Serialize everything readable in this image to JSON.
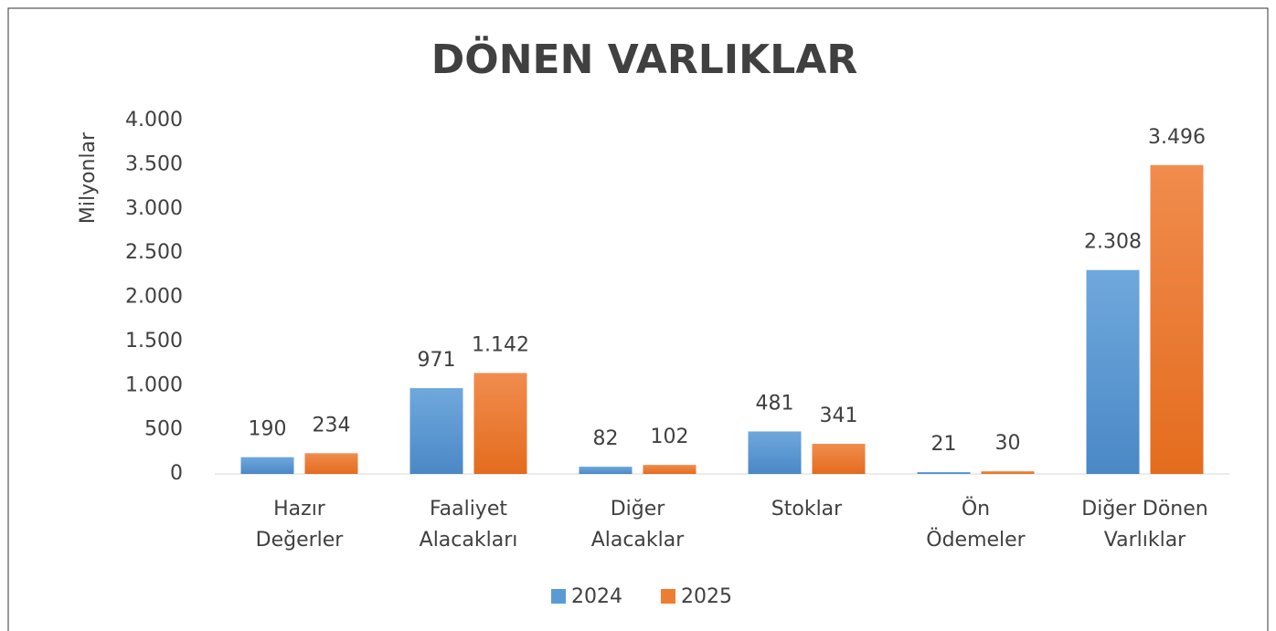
{
  "chart_data": {
    "type": "bar",
    "title": "DÖNEN VARLIKLAR",
    "y_label": "Milyonlar",
    "categories": [
      "Hazır\nDeğerler",
      "Faaliyet\nAlacakları",
      "Diğer\nAlacaklar",
      "Stoklar",
      "Ön\nÖdemeler",
      "Diğer Dönen\nVarlıklar"
    ],
    "series": [
      {
        "name": "2024",
        "color": "#5b9bd5",
        "values": [
          190,
          971,
          82,
          481,
          21,
          2308
        ],
        "value_labels": [
          "190",
          "971",
          "82",
          "481",
          "21",
          "2.308"
        ]
      },
      {
        "name": "2025",
        "color": "#ed7d31",
        "values": [
          234,
          1142,
          102,
          341,
          30,
          3496
        ],
        "value_labels": [
          "234",
          "1.142",
          "102",
          "341",
          "30",
          "3.496"
        ]
      }
    ],
    "ylim": [
      0,
      4000
    ],
    "yticks": [
      0,
      500,
      {
        "value": 1000,
        "label": "1.000"
      },
      {
        "value": 1500,
        "label": "1.500"
      },
      {
        "value": 2000,
        "label": "2.000"
      },
      {
        "value": 2500,
        "label": "2.500"
      },
      {
        "value": 3000,
        "label": "3.000"
      },
      {
        "value": 3500,
        "label": "3.500"
      },
      {
        "value": 4000,
        "label": "4.000"
      }
    ],
    "legend": "bottom",
    "grid": false
  }
}
